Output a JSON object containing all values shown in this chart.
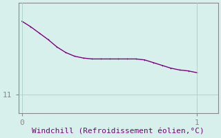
{
  "x": [
    0.0,
    0.05,
    0.1,
    0.15,
    0.2,
    0.25,
    0.3,
    0.35,
    0.4,
    0.45,
    0.5,
    0.55,
    0.6,
    0.65,
    0.7,
    0.75,
    0.8,
    0.85,
    0.9,
    0.95,
    1.0
  ],
  "y": [
    15.0,
    14.7,
    14.35,
    14.0,
    13.6,
    13.3,
    13.1,
    13.0,
    12.95,
    12.95,
    12.95,
    12.95,
    12.95,
    12.95,
    12.9,
    12.75,
    12.6,
    12.45,
    12.35,
    12.3,
    12.2
  ],
  "line_color": "#7b0080",
  "marker": ".",
  "marker_size": 2.5,
  "background_color": "#d8f0ec",
  "grid_color": "#aacfca",
  "axis_color": "#888888",
  "xlabel": "Windchill (Refroidissement éolien,°C)",
  "xlabel_color": "#7b0080",
  "xlabel_fontsize": 8,
  "ytick_labels": [
    "11"
  ],
  "ytick_values": [
    11
  ],
  "xtick_values": [
    0,
    1
  ],
  "xtick_labels": [
    "0",
    "1"
  ],
  "xlim": [
    -0.02,
    1.12
  ],
  "ylim": [
    10.0,
    16.0
  ],
  "tick_color": "#7b0080",
  "tick_fontsize": 8,
  "linewidth": 1.0
}
